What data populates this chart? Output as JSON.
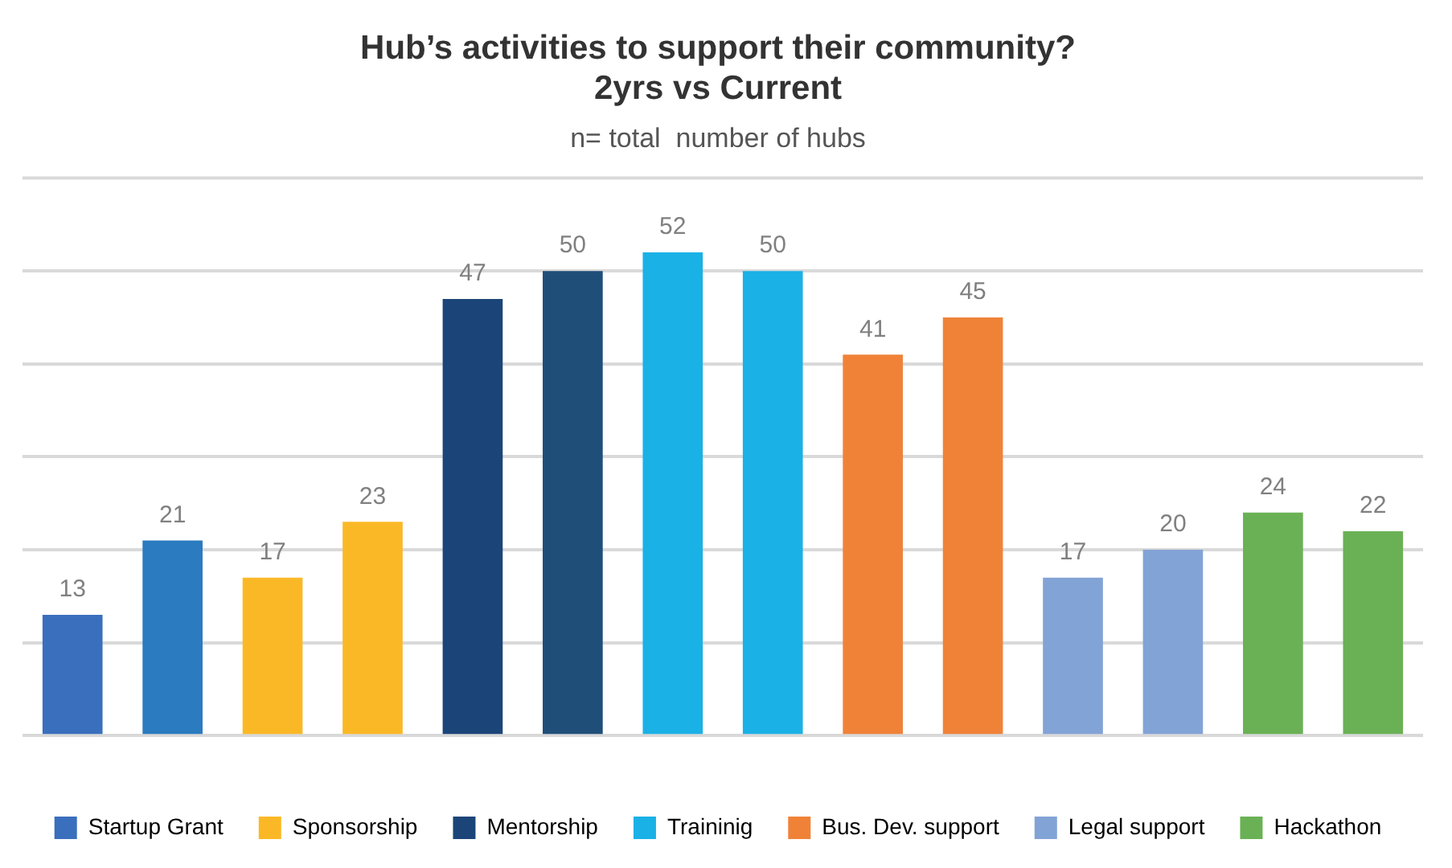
{
  "chart_data": {
    "type": "bar",
    "title": [
      "Hub’s activities to support their community?",
      "2yrs vs Current"
    ],
    "subtitle": "n= total  number of hubs",
    "categories": [
      null,
      null,
      null,
      null,
      null,
      null,
      null,
      null,
      null,
      null,
      null,
      null,
      null,
      null
    ],
    "series": [
      {
        "name": "Startup Grant",
        "color": "#3a6fbd",
        "colors": [
          "#3a6fbd",
          "#2a7bbf",
          null,
          null,
          null,
          null,
          null,
          null,
          null,
          null,
          null,
          null,
          null,
          null
        ],
        "values": [
          13,
          21,
          null,
          null,
          null,
          null,
          null,
          null,
          null,
          null,
          null,
          null,
          null,
          null
        ]
      },
      {
        "name": "Sponsorship",
        "color": "#fbb826",
        "values": [
          null,
          null,
          17,
          23,
          null,
          null,
          null,
          null,
          null,
          null,
          null,
          null,
          null,
          null
        ]
      },
      {
        "name": "Mentorship",
        "color": "#1b4579",
        "colors": [
          null,
          null,
          null,
          null,
          "#1b4579",
          "#1f4e79",
          null,
          null,
          null,
          null,
          null,
          null,
          null,
          null
        ],
        "values": [
          null,
          null,
          null,
          null,
          47,
          50,
          null,
          null,
          null,
          null,
          null,
          null,
          null,
          null
        ]
      },
      {
        "name": "Traininig",
        "color": "#1ab1e6",
        "values": [
          null,
          null,
          null,
          null,
          null,
          null,
          52,
          50,
          null,
          null,
          null,
          null,
          null,
          null
        ]
      },
      {
        "name": "Bus. Dev. support",
        "color": "#f08238",
        "values": [
          null,
          null,
          null,
          null,
          null,
          null,
          null,
          null,
          41,
          45,
          null,
          null,
          null,
          null
        ]
      },
      {
        "name": "Legal support",
        "color": "#82a3d6",
        "values": [
          null,
          null,
          null,
          null,
          null,
          null,
          null,
          null,
          null,
          null,
          17,
          20,
          null,
          null
        ]
      },
      {
        "name": "Hackathon",
        "color": "#6ab155",
        "values": [
          null,
          null,
          null,
          null,
          null,
          null,
          null,
          null,
          null,
          null,
          null,
          null,
          24,
          22
        ]
      }
    ],
    "stacked": true,
    "ylim": [
      0,
      60
    ],
    "yticks": [
      {
        "value": 0,
        "label": null
      },
      {
        "value": 10,
        "label": null
      },
      {
        "value": 20,
        "label": null
      },
      {
        "value": 30,
        "label": null
      },
      {
        "value": 40,
        "label": null
      },
      {
        "value": 50,
        "label": null
      }
    ],
    "grid": "y",
    "data_labels": true,
    "legend": "bottom"
  }
}
